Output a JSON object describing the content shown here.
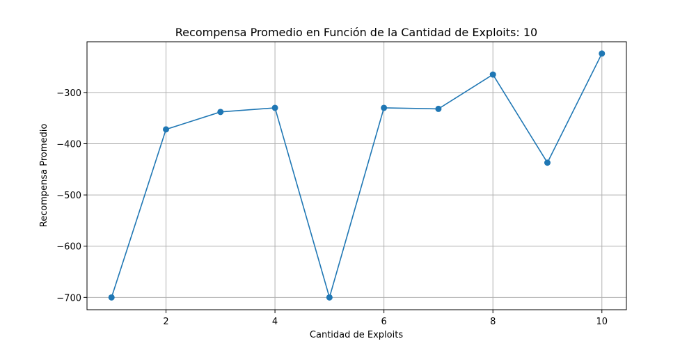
{
  "chart_data": {
    "type": "line",
    "title": "Recompensa Promedio en Función de la Cantidad de Exploits: 10",
    "xlabel": "Cantidad de Exploits",
    "ylabel": "Recompensa Promedio",
    "x": [
      1,
      2,
      3,
      4,
      5,
      6,
      7,
      8,
      9,
      10
    ],
    "series": [
      {
        "values": [
          -700,
          -372,
          -338,
          -330,
          -700,
          -330,
          -332,
          -265,
          -437,
          -224
        ],
        "color": "#1f77b4",
        "marker": "circle"
      }
    ],
    "xlim": [
      0.55,
      10.45
    ],
    "ylim": [
      -724,
      -201
    ],
    "xticks": [
      2,
      4,
      6,
      8,
      10
    ],
    "yticks": [
      -700,
      -600,
      -500,
      -400,
      -300
    ],
    "grid": true
  }
}
